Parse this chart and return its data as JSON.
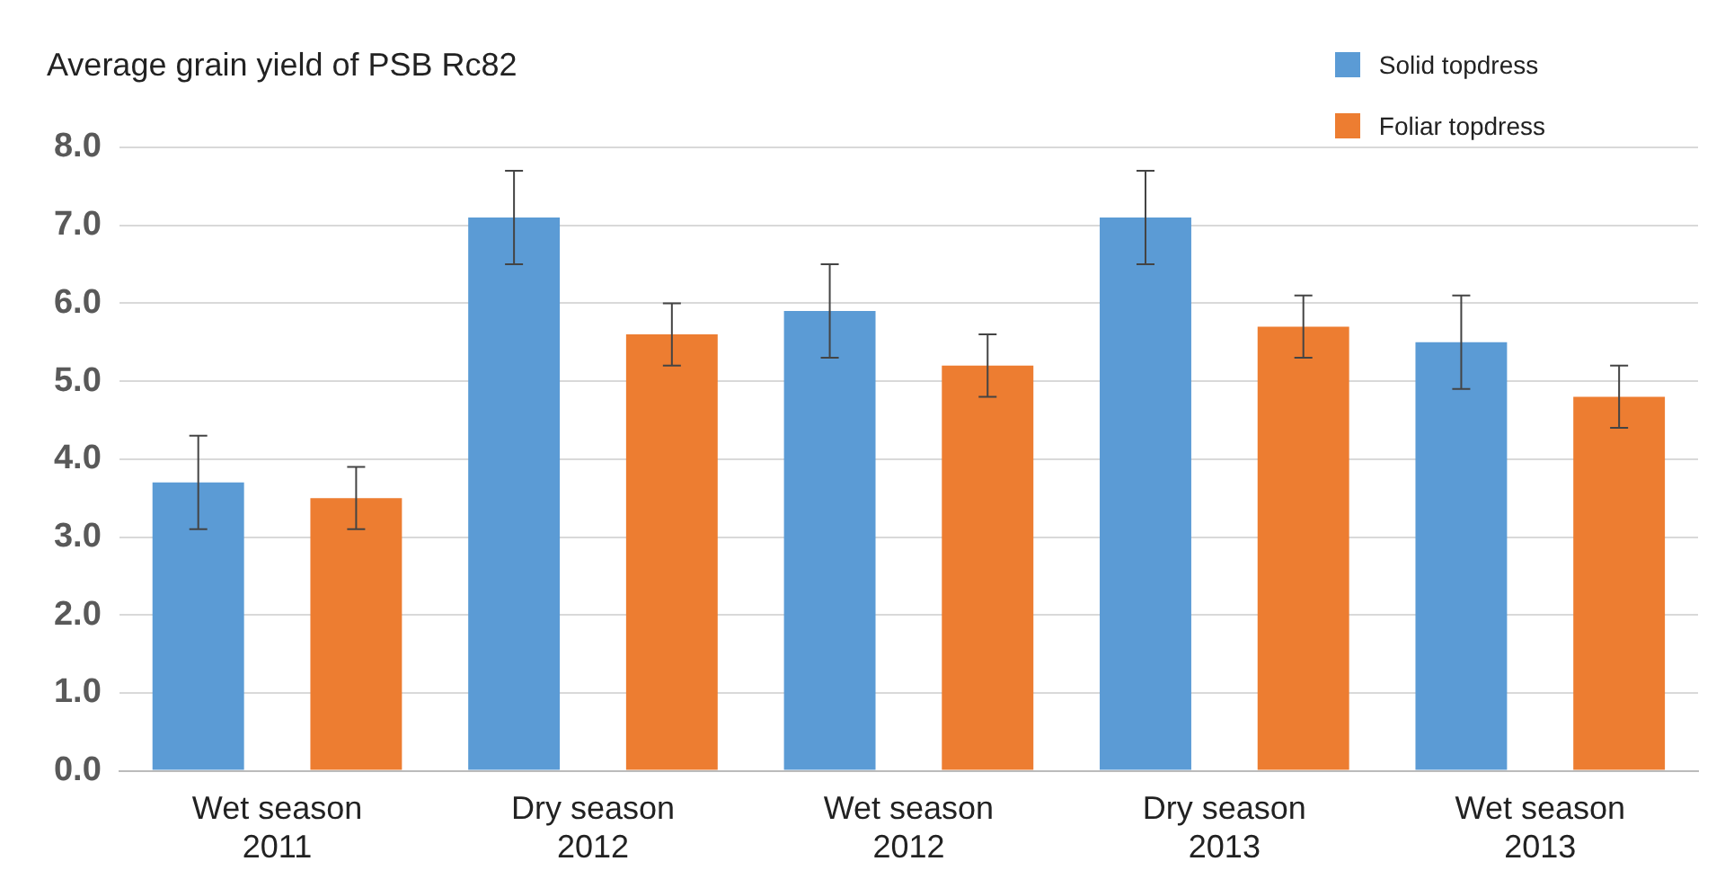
{
  "chart_data": {
    "type": "bar",
    "title": "Average grain yield of PSB Rc82",
    "categories": [
      "Wet season 2011",
      "Dry season 2012",
      "Wet season 2012",
      "Dry season 2013",
      "Wet season 2013"
    ],
    "series": [
      {
        "name": "Solid topdress",
        "color": "#5b9bd5",
        "values": [
          3.7,
          7.1,
          5.9,
          7.1,
          5.5
        ],
        "errors": [
          0.6,
          0.6,
          0.6,
          0.6,
          0.6
        ]
      },
      {
        "name": "Foliar topdress",
        "color": "#ed7d31",
        "values": [
          3.5,
          5.6,
          5.2,
          5.7,
          4.8
        ],
        "errors": [
          0.4,
          0.4,
          0.4,
          0.4,
          0.4
        ]
      }
    ],
    "ylim": [
      0,
      8
    ],
    "yticks": [
      {
        "value": 0,
        "label": "0.0"
      },
      {
        "value": 1,
        "label": "1.0"
      },
      {
        "value": 2,
        "label": "2.0"
      },
      {
        "value": 3,
        "label": "3.0"
      },
      {
        "value": 4,
        "label": "4.0"
      },
      {
        "value": 5,
        "label": "5.0"
      },
      {
        "value": 6,
        "label": "6.0"
      },
      {
        "value": 7,
        "label": "7.0"
      },
      {
        "value": 8,
        "label": "8.0"
      }
    ],
    "grid": "y",
    "legend": "top right"
  }
}
